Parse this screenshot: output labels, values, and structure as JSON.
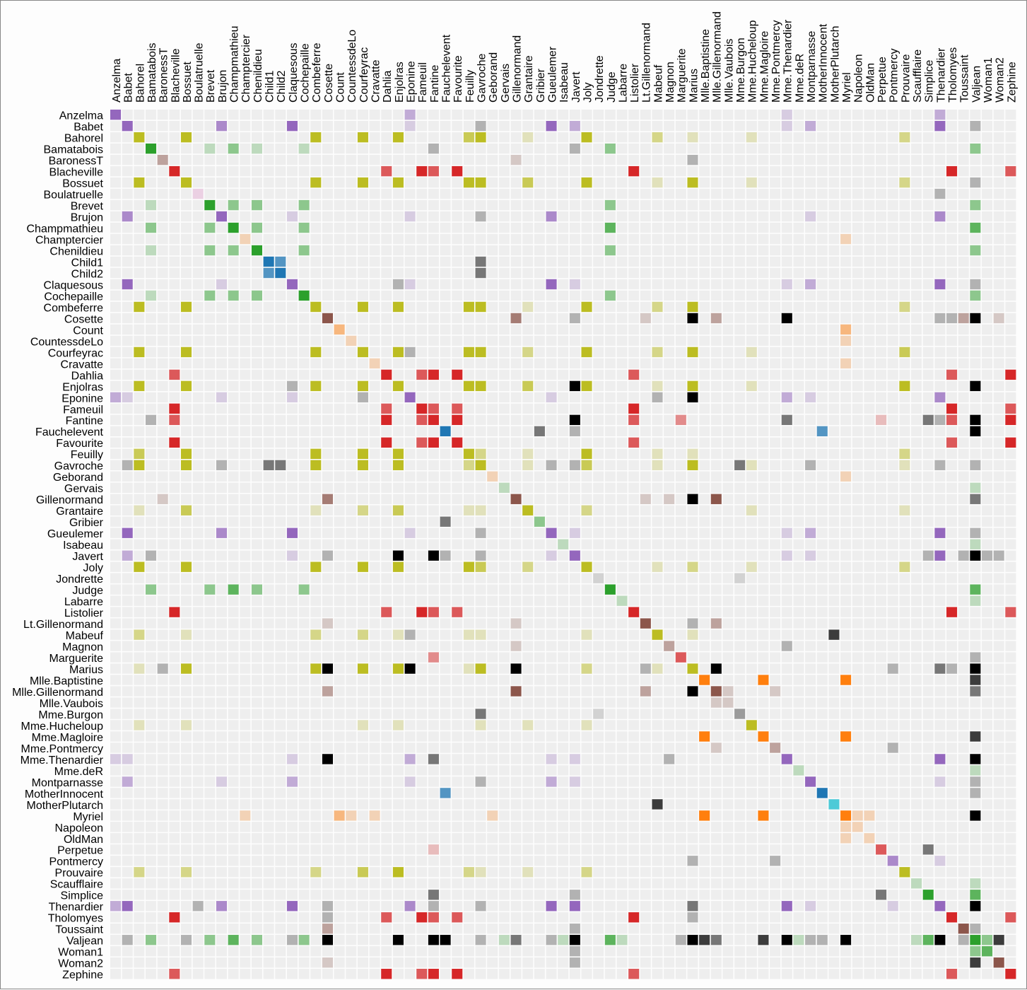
{
  "chart_data": {
    "type": "heatmap",
    "title": "",
    "order": "name",
    "background_color": "#eeeeee",
    "gridline_color": "#ffffff",
    "cross_group_color": "#000000",
    "opacity_domain": [
      0,
      4
    ],
    "group_colors": [
      "#1f77b4",
      "#ff7f0e",
      "#2ca02c",
      "#d62728",
      "#9467bd",
      "#8c564b",
      "#e377c2",
      "#7f7f7f",
      "#bcbd22",
      "#17becf",
      "#1f77b4"
    ],
    "nodes": [
      {
        "name": "Myriel",
        "group": 1
      },
      {
        "name": "Napoleon",
        "group": 1
      },
      {
        "name": "Mlle.Baptistine",
        "group": 1
      },
      {
        "name": "Mme.Magloire",
        "group": 1
      },
      {
        "name": "CountessdeLo",
        "group": 1
      },
      {
        "name": "Geborand",
        "group": 1
      },
      {
        "name": "Champtercier",
        "group": 1
      },
      {
        "name": "Cravatte",
        "group": 1
      },
      {
        "name": "Count",
        "group": 1
      },
      {
        "name": "OldMan",
        "group": 1
      },
      {
        "name": "Labarre",
        "group": 2
      },
      {
        "name": "Valjean",
        "group": 2
      },
      {
        "name": "Marguerite",
        "group": 3
      },
      {
        "name": "Mme.deR",
        "group": 2
      },
      {
        "name": "Isabeau",
        "group": 2
      },
      {
        "name": "Gervais",
        "group": 2
      },
      {
        "name": "Tholomyes",
        "group": 3
      },
      {
        "name": "Listolier",
        "group": 3
      },
      {
        "name": "Fameuil",
        "group": 3
      },
      {
        "name": "Blacheville",
        "group": 3
      },
      {
        "name": "Favourite",
        "group": 3
      },
      {
        "name": "Dahlia",
        "group": 3
      },
      {
        "name": "Zephine",
        "group": 3
      },
      {
        "name": "Fantine",
        "group": 3
      },
      {
        "name": "Mme.Thenardier",
        "group": 4
      },
      {
        "name": "Thenardier",
        "group": 4
      },
      {
        "name": "Cosette",
        "group": 5
      },
      {
        "name": "Javert",
        "group": 4
      },
      {
        "name": "Fauchelevent",
        "group": 0
      },
      {
        "name": "Bamatabois",
        "group": 2
      },
      {
        "name": "Perpetue",
        "group": 3
      },
      {
        "name": "Simplice",
        "group": 2
      },
      {
        "name": "Scaufflaire",
        "group": 2
      },
      {
        "name": "Woman1",
        "group": 2
      },
      {
        "name": "Judge",
        "group": 2
      },
      {
        "name": "Champmathieu",
        "group": 2
      },
      {
        "name": "Brevet",
        "group": 2
      },
      {
        "name": "Chenildieu",
        "group": 2
      },
      {
        "name": "Cochepaille",
        "group": 2
      },
      {
        "name": "Pontmercy",
        "group": 4
      },
      {
        "name": "Boulatruelle",
        "group": 6
      },
      {
        "name": "Eponine",
        "group": 4
      },
      {
        "name": "Anzelma",
        "group": 4
      },
      {
        "name": "Woman2",
        "group": 5
      },
      {
        "name": "MotherInnocent",
        "group": 0
      },
      {
        "name": "Gribier",
        "group": 2
      },
      {
        "name": "Jondrette",
        "group": 7
      },
      {
        "name": "Mme.Burgon",
        "group": 7
      },
      {
        "name": "Gavroche",
        "group": 8
      },
      {
        "name": "Gillenormand",
        "group": 5
      },
      {
        "name": "Magnon",
        "group": 5
      },
      {
        "name": "Mlle.Gillenormand",
        "group": 5
      },
      {
        "name": "Mme.Pontmercy",
        "group": 5
      },
      {
        "name": "Mlle.Vaubois",
        "group": 5
      },
      {
        "name": "Lt.Gillenormand",
        "group": 5
      },
      {
        "name": "Marius",
        "group": 8
      },
      {
        "name": "BaronessT",
        "group": 5
      },
      {
        "name": "Mabeuf",
        "group": 8
      },
      {
        "name": "Enjolras",
        "group": 8
      },
      {
        "name": "Combeferre",
        "group": 8
      },
      {
        "name": "Prouvaire",
        "group": 8
      },
      {
        "name": "Feuilly",
        "group": 8
      },
      {
        "name": "Courfeyrac",
        "group": 8
      },
      {
        "name": "Bahorel",
        "group": 8
      },
      {
        "name": "Bossuet",
        "group": 8
      },
      {
        "name": "Joly",
        "group": 8
      },
      {
        "name": "Grantaire",
        "group": 8
      },
      {
        "name": "MotherPlutarch",
        "group": 9
      },
      {
        "name": "Gueulemer",
        "group": 4
      },
      {
        "name": "Babet",
        "group": 4
      },
      {
        "name": "Claquesous",
        "group": 4
      },
      {
        "name": "Montparnasse",
        "group": 4
      },
      {
        "name": "Toussaint",
        "group": 5
      },
      {
        "name": "Child1",
        "group": 10
      },
      {
        "name": "Child2",
        "group": 10
      },
      {
        "name": "Brujon",
        "group": 4
      },
      {
        "name": "Mme.Hucheloup",
        "group": 8
      }
    ],
    "links": [
      [
        1,
        0,
        1
      ],
      [
        2,
        0,
        8
      ],
      [
        3,
        0,
        10
      ],
      [
        3,
        2,
        6
      ],
      [
        4,
        0,
        1
      ],
      [
        5,
        0,
        1
      ],
      [
        6,
        0,
        1
      ],
      [
        7,
        0,
        1
      ],
      [
        8,
        0,
        2
      ],
      [
        9,
        0,
        1
      ],
      [
        11,
        10,
        1
      ],
      [
        11,
        3,
        3
      ],
      [
        11,
        2,
        3
      ],
      [
        11,
        0,
        5
      ],
      [
        12,
        11,
        1
      ],
      [
        13,
        11,
        1
      ],
      [
        14,
        11,
        1
      ],
      [
        15,
        11,
        1
      ],
      [
        17,
        16,
        4
      ],
      [
        18,
        16,
        4
      ],
      [
        18,
        17,
        4
      ],
      [
        19,
        16,
        4
      ],
      [
        19,
        17,
        4
      ],
      [
        19,
        18,
        4
      ],
      [
        20,
        16,
        3
      ],
      [
        20,
        17,
        3
      ],
      [
        20,
        18,
        3
      ],
      [
        20,
        19,
        4
      ],
      [
        21,
        16,
        3
      ],
      [
        21,
        17,
        3
      ],
      [
        21,
        18,
        3
      ],
      [
        21,
        19,
        3
      ],
      [
        21,
        20,
        5
      ],
      [
        22,
        16,
        3
      ],
      [
        22,
        17,
        3
      ],
      [
        22,
        18,
        3
      ],
      [
        22,
        19,
        3
      ],
      [
        22,
        20,
        4
      ],
      [
        22,
        21,
        4
      ],
      [
        23,
        16,
        3
      ],
      [
        23,
        17,
        3
      ],
      [
        23,
        18,
        3
      ],
      [
        23,
        19,
        3
      ],
      [
        23,
        20,
        4
      ],
      [
        23,
        21,
        4
      ],
      [
        23,
        22,
        4
      ],
      [
        23,
        12,
        2
      ],
      [
        23,
        11,
        9
      ],
      [
        24,
        23,
        2
      ],
      [
        24,
        11,
        7
      ],
      [
        25,
        24,
        13
      ],
      [
        25,
        23,
        1
      ],
      [
        25,
        11,
        12
      ],
      [
        26,
        24,
        4
      ],
      [
        26,
        11,
        31
      ],
      [
        26,
        16,
        1
      ],
      [
        26,
        25,
        1
      ],
      [
        27,
        11,
        17
      ],
      [
        27,
        23,
        5
      ],
      [
        27,
        25,
        5
      ],
      [
        27,
        24,
        1
      ],
      [
        27,
        26,
        1
      ],
      [
        28,
        11,
        8
      ],
      [
        28,
        27,
        1
      ],
      [
        29,
        23,
        1
      ],
      [
        29,
        27,
        1
      ],
      [
        29,
        11,
        2
      ],
      [
        30,
        23,
        1
      ],
      [
        31,
        30,
        2
      ],
      [
        31,
        11,
        3
      ],
      [
        31,
        23,
        2
      ],
      [
        31,
        27,
        1
      ],
      [
        32,
        11,
        1
      ],
      [
        33,
        11,
        2
      ],
      [
        33,
        27,
        1
      ],
      [
        34,
        11,
        3
      ],
      [
        34,
        29,
        2
      ],
      [
        35,
        11,
        3
      ],
      [
        35,
        34,
        3
      ],
      [
        35,
        29,
        2
      ],
      [
        36,
        34,
        2
      ],
      [
        36,
        35,
        2
      ],
      [
        36,
        11,
        2
      ],
      [
        36,
        29,
        1
      ],
      [
        37,
        34,
        2
      ],
      [
        37,
        35,
        2
      ],
      [
        37,
        36,
        2
      ],
      [
        37,
        11,
        2
      ],
      [
        37,
        29,
        1
      ],
      [
        38,
        34,
        2
      ],
      [
        38,
        35,
        2
      ],
      [
        38,
        36,
        2
      ],
      [
        38,
        37,
        2
      ],
      [
        38,
        11,
        2
      ],
      [
        38,
        29,
        1
      ],
      [
        39,
        25,
        1
      ],
      [
        40,
        25,
        1
      ],
      [
        41,
        24,
        2
      ],
      [
        41,
        25,
        3
      ],
      [
        42,
        41,
        2
      ],
      [
        42,
        25,
        2
      ],
      [
        42,
        24,
        1
      ],
      [
        43,
        11,
        3
      ],
      [
        43,
        26,
        1
      ],
      [
        43,
        27,
        1
      ],
      [
        44,
        28,
        3
      ],
      [
        44,
        11,
        1
      ],
      [
        45,
        28,
        2
      ],
      [
        47,
        46,
        1
      ],
      [
        48,
        47,
        2
      ],
      [
        48,
        25,
        1
      ],
      [
        48,
        27,
        1
      ],
      [
        48,
        11,
        1
      ],
      [
        49,
        26,
        3
      ],
      [
        49,
        11,
        2
      ],
      [
        50,
        49,
        1
      ],
      [
        50,
        24,
        1
      ],
      [
        51,
        49,
        9
      ],
      [
        51,
        26,
        2
      ],
      [
        51,
        11,
        2
      ],
      [
        52,
        51,
        1
      ],
      [
        52,
        39,
        1
      ],
      [
        53,
        51,
        1
      ],
      [
        54,
        51,
        2
      ],
      [
        54,
        49,
        1
      ],
      [
        54,
        26,
        1
      ],
      [
        55,
        51,
        6
      ],
      [
        55,
        49,
        12
      ],
      [
        55,
        39,
        1
      ],
      [
        55,
        54,
        1
      ],
      [
        55,
        26,
        21
      ],
      [
        55,
        11,
        19
      ],
      [
        55,
        16,
        1
      ],
      [
        55,
        25,
        2
      ],
      [
        55,
        41,
        5
      ],
      [
        55,
        48,
        4
      ],
      [
        56,
        49,
        1
      ],
      [
        56,
        55,
        1
      ],
      [
        57,
        55,
        1
      ],
      [
        57,
        41,
        1
      ],
      [
        57,
        48,
        1
      ],
      [
        58,
        55,
        7
      ],
      [
        58,
        48,
        7
      ],
      [
        58,
        27,
        6
      ],
      [
        58,
        57,
        1
      ],
      [
        58,
        11,
        4
      ],
      [
        59,
        58,
        15
      ],
      [
        59,
        55,
        5
      ],
      [
        59,
        48,
        6
      ],
      [
        59,
        57,
        2
      ],
      [
        60,
        48,
        1
      ],
      [
        60,
        58,
        4
      ],
      [
        60,
        59,
        2
      ],
      [
        61,
        48,
        2
      ],
      [
        61,
        58,
        6
      ],
      [
        61,
        60,
        2
      ],
      [
        61,
        59,
        5
      ],
      [
        61,
        57,
        1
      ],
      [
        61,
        55,
        1
      ],
      [
        62,
        55,
        9
      ],
      [
        62,
        58,
        17
      ],
      [
        62,
        59,
        13
      ],
      [
        62,
        48,
        7
      ],
      [
        62,
        57,
        2
      ],
      [
        62,
        41,
        1
      ],
      [
        62,
        61,
        6
      ],
      [
        62,
        60,
        3
      ],
      [
        63,
        59,
        5
      ],
      [
        63,
        48,
        5
      ],
      [
        63,
        62,
        6
      ],
      [
        63,
        57,
        2
      ],
      [
        63,
        58,
        4
      ],
      [
        63,
        61,
        3
      ],
      [
        63,
        60,
        2
      ],
      [
        63,
        55,
        1
      ],
      [
        64,
        55,
        5
      ],
      [
        64,
        62,
        12
      ],
      [
        64,
        48,
        5
      ],
      [
        64,
        63,
        4
      ],
      [
        64,
        58,
        10
      ],
      [
        64,
        61,
        6
      ],
      [
        64,
        60,
        2
      ],
      [
        64,
        59,
        9
      ],
      [
        64,
        57,
        1
      ],
      [
        64,
        11,
        1
      ],
      [
        65,
        63,
        5
      ],
      [
        65,
        64,
        7
      ],
      [
        65,
        48,
        3
      ],
      [
        65,
        62,
        5
      ],
      [
        65,
        58,
        5
      ],
      [
        65,
        61,
        5
      ],
      [
        65,
        60,
        2
      ],
      [
        65,
        59,
        5
      ],
      [
        65,
        57,
        1
      ],
      [
        65,
        55,
        2
      ],
      [
        66,
        64,
        3
      ],
      [
        66,
        58,
        3
      ],
      [
        66,
        59,
        1
      ],
      [
        66,
        62,
        2
      ],
      [
        66,
        65,
        2
      ],
      [
        66,
        48,
        1
      ],
      [
        66,
        63,
        1
      ],
      [
        66,
        61,
        1
      ],
      [
        66,
        60,
        1
      ],
      [
        67,
        57,
        3
      ],
      [
        68,
        25,
        5
      ],
      [
        68,
        11,
        1
      ],
      [
        68,
        24,
        1
      ],
      [
        68,
        27,
        1
      ],
      [
        68,
        48,
        1
      ],
      [
        68,
        41,
        1
      ],
      [
        69,
        25,
        6
      ],
      [
        69,
        68,
        6
      ],
      [
        69,
        11,
        1
      ],
      [
        69,
        24,
        1
      ],
      [
        69,
        27,
        2
      ],
      [
        69,
        48,
        1
      ],
      [
        69,
        41,
        1
      ],
      [
        70,
        25,
        4
      ],
      [
        70,
        69,
        4
      ],
      [
        70,
        68,
        4
      ],
      [
        70,
        11,
        1
      ],
      [
        70,
        24,
        1
      ],
      [
        70,
        27,
        1
      ],
      [
        70,
        41,
        1
      ],
      [
        70,
        58,
        1
      ],
      [
        71,
        27,
        1
      ],
      [
        71,
        69,
        2
      ],
      [
        71,
        68,
        2
      ],
      [
        71,
        70,
        2
      ],
      [
        71,
        11,
        1
      ],
      [
        71,
        48,
        1
      ],
      [
        71,
        41,
        1
      ],
      [
        71,
        25,
        1
      ],
      [
        72,
        26,
        2
      ],
      [
        72,
        27,
        1
      ],
      [
        72,
        11,
        1
      ],
      [
        73,
        48,
        2
      ],
      [
        74,
        48,
        2
      ],
      [
        74,
        73,
        3
      ],
      [
        75,
        69,
        3
      ],
      [
        75,
        68,
        3
      ],
      [
        75,
        25,
        3
      ],
      [
        75,
        48,
        1
      ],
      [
        75,
        41,
        1
      ],
      [
        75,
        70,
        1
      ],
      [
        75,
        71,
        1
      ],
      [
        76,
        64,
        1
      ],
      [
        76,
        65,
        1
      ],
      [
        76,
        66,
        1
      ],
      [
        76,
        63,
        1
      ],
      [
        76,
        62,
        1
      ],
      [
        76,
        48,
        1
      ],
      [
        76,
        58,
        1
      ]
    ]
  }
}
